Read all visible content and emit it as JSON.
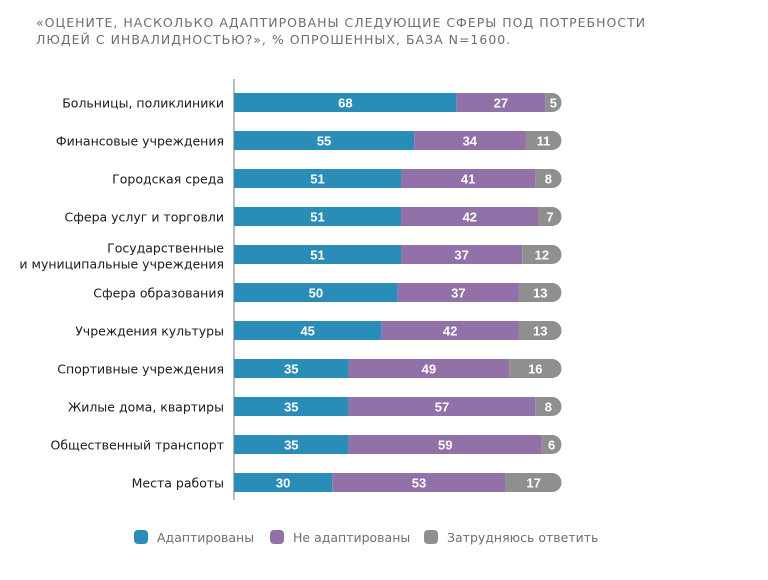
{
  "title_lines": [
    "«ОЦЕНИТЕ, НАСКОЛЬКО АДАПТИРОВАНЫ СЛЕДУЮЩИЕ СФЕРЫ ПОД ПОТРЕБНОСТИ",
    "ЛЮДЕЙ С ИНВАЛИДНОСТЬЮ?», % ОПРОШЕННЫХ, БАЗА N=1600."
  ],
  "chart_data": {
    "type": "bar",
    "orientation": "horizontal",
    "stacked": true,
    "title": "«ОЦЕНИТЕ, НАСКОЛЬКО АДАПТИРОВАНЫ СЛЕДУЮЩИЕ СФЕРЫ ПОД ПОТРЕБНОСТИ ЛЮДЕЙ С ИНВАЛИДНОСТЬЮ?», % ОПРОШЕННЫХ, БАЗА N=1600.",
    "categories": [
      "Больницы, поликлиники",
      "Финансовые учреждения",
      "Городская среда",
      "Сфера услуг и торговли",
      "Государственные и муниципальные учреждения",
      "Сфера образования",
      "Учреждения культуры",
      "Спортивные учреждения",
      "Жилые дома, квартиры",
      "Общественный транспорт",
      "Места работы"
    ],
    "category_lines": [
      [
        "Больницы, поликлиники"
      ],
      [
        "Финансовые учреждения"
      ],
      [
        "Городская среда"
      ],
      [
        "Сфера услуг и торговли"
      ],
      [
        "Государственные",
        "и муниципальные учреждения"
      ],
      [
        "Сфера образования"
      ],
      [
        "Учреждения культуры"
      ],
      [
        "Спортивные учреждения"
      ],
      [
        "Жилые дома, квартиры"
      ],
      [
        "Общественный транспорт"
      ],
      [
        "Места работы"
      ]
    ],
    "series": [
      {
        "name": "Адаптированы",
        "color": "#2a8db8",
        "values": [
          68,
          55,
          51,
          51,
          51,
          50,
          45,
          35,
          35,
          35,
          30
        ]
      },
      {
        "name": "Не адаптированы",
        "color": "#9271a8",
        "values": [
          27,
          34,
          41,
          42,
          37,
          37,
          42,
          49,
          57,
          59,
          53
        ]
      },
      {
        "name": "Затрудняюсь ответить",
        "color": "#8f8f8f",
        "values": [
          5,
          11,
          8,
          7,
          12,
          13,
          13,
          16,
          8,
          6,
          17
        ]
      }
    ],
    "legend_position": "bottom",
    "grid": false
  }
}
